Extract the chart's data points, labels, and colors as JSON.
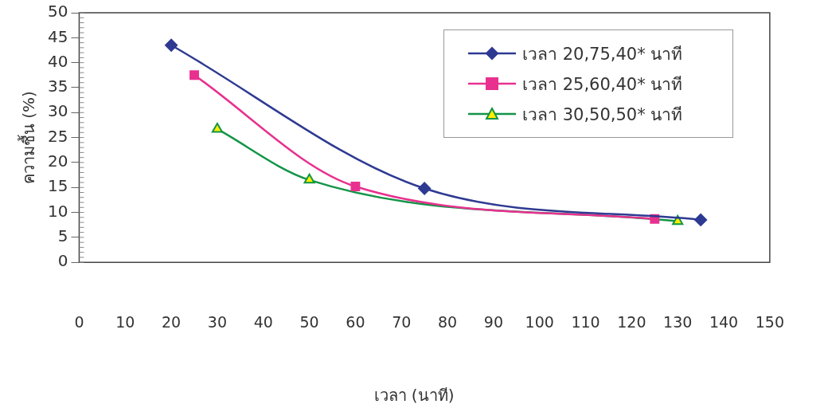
{
  "chart_data": {
    "type": "line",
    "xlabel": "เวลา (นาที)",
    "ylabel": "ความชื้น (%)",
    "xlim": [
      0,
      150
    ],
    "xticks": [
      0,
      10,
      20,
      30,
      40,
      50,
      60,
      70,
      80,
      90,
      100,
      110,
      120,
      130,
      140,
      150
    ],
    "ylim": [
      0,
      50
    ],
    "yticks": [
      0,
      5,
      10,
      15,
      20,
      25,
      30,
      35,
      40,
      45,
      50
    ],
    "grid": false,
    "legend": "top right",
    "series": [
      {
        "name": "เวลา 20,75,40* นาที",
        "color": "#2e3a92",
        "marker": "diamond",
        "x": [
          20,
          75,
          135
        ],
        "values": [
          43.5,
          14.8,
          8.5
        ]
      },
      {
        "name": "เวลา 25,60,40* นาที",
        "color": "#e8318f",
        "marker": "square",
        "x": [
          25,
          60,
          125
        ],
        "values": [
          37.5,
          15.2,
          8.7
        ]
      },
      {
        "name": "เวลา 30,50,50* นาที",
        "color": "#139447",
        "marker": "triangle",
        "x": [
          30,
          50,
          130
        ],
        "values": [
          26.7,
          16.5,
          8.2
        ]
      }
    ]
  }
}
